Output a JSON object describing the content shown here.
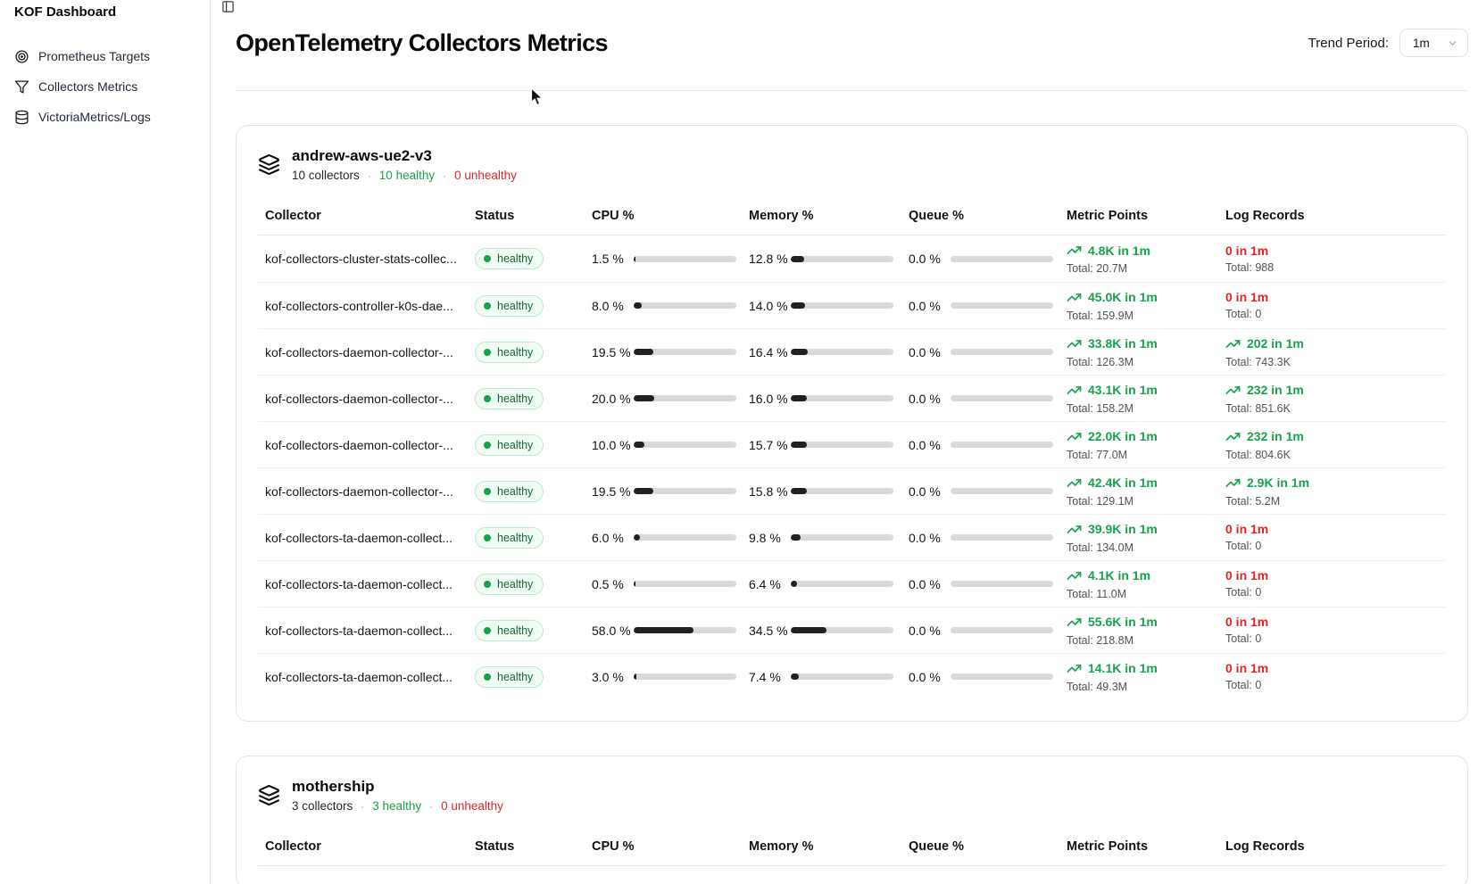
{
  "sidebar": {
    "title": "KOF Dashboard",
    "items": [
      {
        "label": "Prometheus Targets",
        "icon": "target-icon"
      },
      {
        "label": "Collectors Metrics",
        "icon": "filter-icon"
      },
      {
        "label": "VictoriaMetrics/Logs",
        "icon": "database-icon"
      }
    ]
  },
  "header": {
    "title": "OpenTelemetry Collectors Metrics",
    "toggle_icon": "panel-left-icon",
    "trend_period_label": "Trend Period:",
    "trend_period_value": "1m",
    "trend_period_chevron": "chevron-down-icon"
  },
  "table_columns": [
    "Collector",
    "Status",
    "CPU %",
    "Memory %",
    "Queue %",
    "Metric Points",
    "Log Records"
  ],
  "meta_separator": "·",
  "colors": {
    "healthy_green": "#16a34a",
    "unhealthy_red": "#dc2626",
    "badge_bg": "#f0fdf4",
    "badge_border": "#bce8cc",
    "bar_fill": "#1f2124",
    "bar_track": "#d9d9dd"
  },
  "clusters": [
    {
      "name": "andrew-aws-ue2-v3",
      "icon": "layers-icon",
      "collectors_text": "10 collectors",
      "healthy_text": "10 healthy",
      "unhealthy_text": "0 unhealthy",
      "rows": [
        {
          "collector": "kof-collectors-cluster-stats-collec...",
          "status": "healthy",
          "cpu": "1.5 %",
          "cpu_pct": 1.5,
          "memory": "12.8 %",
          "memory_pct": 12.8,
          "queue": "0.0 %",
          "queue_pct": 0,
          "metric_points": {
            "trend": "4.8K in 1m",
            "total": "Total: 20.7M",
            "positive": true
          },
          "log_records": {
            "trend": "0 in 1m",
            "total": "Total: 988",
            "positive": false
          }
        },
        {
          "collector": "kof-collectors-controller-k0s-dae...",
          "status": "healthy",
          "cpu": "8.0 %",
          "cpu_pct": 8.0,
          "memory": "14.0 %",
          "memory_pct": 14.0,
          "queue": "0.0 %",
          "queue_pct": 0,
          "metric_points": {
            "trend": "45.0K in 1m",
            "total": "Total: 159.9M",
            "positive": true
          },
          "log_records": {
            "trend": "0 in 1m",
            "total": "Total: 0",
            "positive": false
          }
        },
        {
          "collector": "kof-collectors-daemon-collector-...",
          "status": "healthy",
          "cpu": "19.5 %",
          "cpu_pct": 19.5,
          "memory": "16.4 %",
          "memory_pct": 16.4,
          "queue": "0.0 %",
          "queue_pct": 0,
          "metric_points": {
            "trend": "33.8K in 1m",
            "total": "Total: 126.3M",
            "positive": true
          },
          "log_records": {
            "trend": "202 in 1m",
            "total": "Total: 743.3K",
            "positive": true
          }
        },
        {
          "collector": "kof-collectors-daemon-collector-...",
          "status": "healthy",
          "cpu": "20.0 %",
          "cpu_pct": 20.0,
          "memory": "16.0 %",
          "memory_pct": 16.0,
          "queue": "0.0 %",
          "queue_pct": 0,
          "metric_points": {
            "trend": "43.1K in 1m",
            "total": "Total: 158.2M",
            "positive": true
          },
          "log_records": {
            "trend": "232 in 1m",
            "total": "Total: 851.6K",
            "positive": true
          }
        },
        {
          "collector": "kof-collectors-daemon-collector-...",
          "status": "healthy",
          "cpu": "10.0 %",
          "cpu_pct": 10.0,
          "memory": "15.7 %",
          "memory_pct": 15.7,
          "queue": "0.0 %",
          "queue_pct": 0,
          "metric_points": {
            "trend": "22.0K in 1m",
            "total": "Total: 77.0M",
            "positive": true
          },
          "log_records": {
            "trend": "232 in 1m",
            "total": "Total: 804.6K",
            "positive": true
          }
        },
        {
          "collector": "kof-collectors-daemon-collector-...",
          "status": "healthy",
          "cpu": "19.5 %",
          "cpu_pct": 19.5,
          "memory": "15.8 %",
          "memory_pct": 15.8,
          "queue": "0.0 %",
          "queue_pct": 0,
          "metric_points": {
            "trend": "42.4K in 1m",
            "total": "Total: 129.1M",
            "positive": true
          },
          "log_records": {
            "trend": "2.9K in 1m",
            "total": "Total: 5.2M",
            "positive": true
          }
        },
        {
          "collector": "kof-collectors-ta-daemon-collect...",
          "status": "healthy",
          "cpu": "6.0 %",
          "cpu_pct": 6.0,
          "memory": "9.8 %",
          "memory_pct": 9.8,
          "queue": "0.0 %",
          "queue_pct": 0,
          "metric_points": {
            "trend": "39.9K in 1m",
            "total": "Total: 134.0M",
            "positive": true
          },
          "log_records": {
            "trend": "0 in 1m",
            "total": "Total: 0",
            "positive": false
          }
        },
        {
          "collector": "kof-collectors-ta-daemon-collect...",
          "status": "healthy",
          "cpu": "0.5 %",
          "cpu_pct": 0.5,
          "memory": "6.4 %",
          "memory_pct": 6.4,
          "queue": "0.0 %",
          "queue_pct": 0,
          "metric_points": {
            "trend": "4.1K in 1m",
            "total": "Total: 11.0M",
            "positive": true
          },
          "log_records": {
            "trend": "0 in 1m",
            "total": "Total: 0",
            "positive": false
          }
        },
        {
          "collector": "kof-collectors-ta-daemon-collect...",
          "status": "healthy",
          "cpu": "58.0 %",
          "cpu_pct": 58.0,
          "memory": "34.5 %",
          "memory_pct": 34.5,
          "queue": "0.0 %",
          "queue_pct": 0,
          "metric_points": {
            "trend": "55.6K in 1m",
            "total": "Total: 218.8M",
            "positive": true
          },
          "log_records": {
            "trend": "0 in 1m",
            "total": "Total: 0",
            "positive": false
          }
        },
        {
          "collector": "kof-collectors-ta-daemon-collect...",
          "status": "healthy",
          "cpu": "3.0 %",
          "cpu_pct": 3.0,
          "memory": "7.4 %",
          "memory_pct": 7.4,
          "queue": "0.0 %",
          "queue_pct": 0,
          "metric_points": {
            "trend": "14.1K in 1m",
            "total": "Total: 49.3M",
            "positive": true
          },
          "log_records": {
            "trend": "0 in 1m",
            "total": "Total: 0",
            "positive": false
          }
        }
      ]
    },
    {
      "name": "mothership",
      "icon": "layers-icon",
      "collectors_text": "3 collectors",
      "healthy_text": "3 healthy",
      "unhealthy_text": "0 unhealthy",
      "rows": []
    }
  ]
}
